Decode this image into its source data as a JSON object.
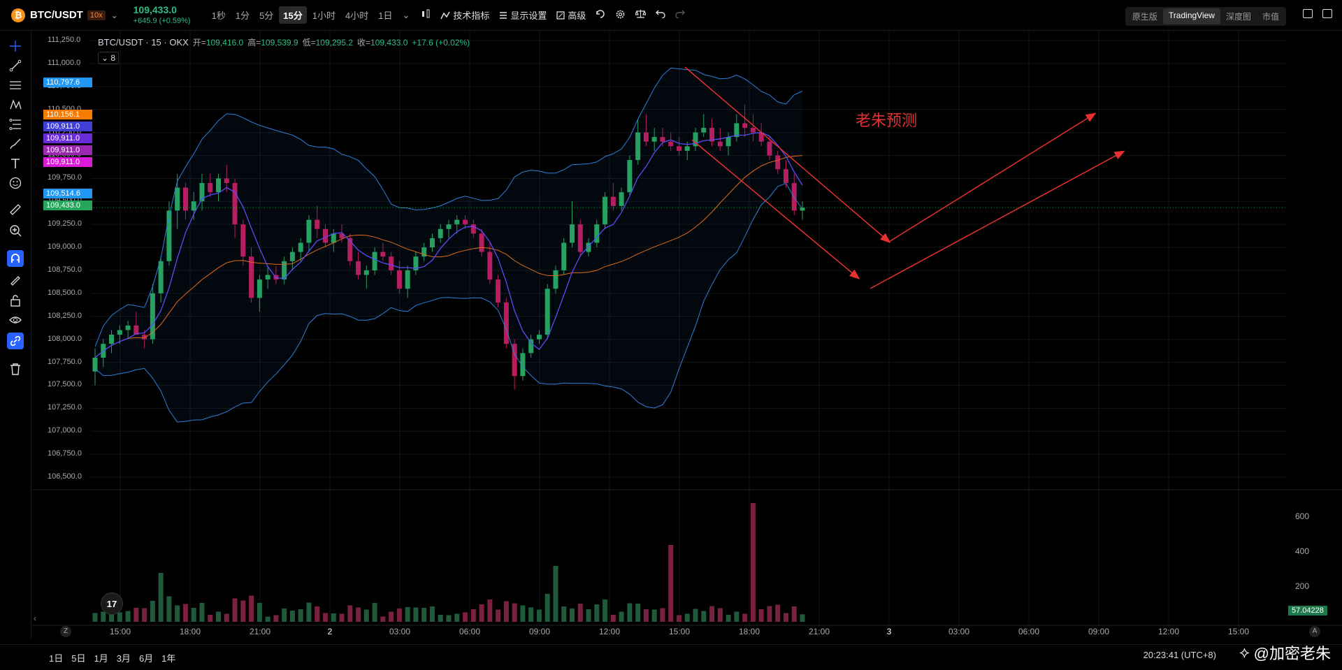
{
  "header": {
    "coin_glyph": "₿",
    "symbol": "BTC/USDT",
    "leverage": "10x",
    "price": "109,433.0",
    "change": "+645.9 (+0.59%)",
    "timeframes": [
      "1秒",
      "1分",
      "5分",
      "15分",
      "1小时",
      "4小时",
      "1日"
    ],
    "active_timeframe": "15分",
    "tools": {
      "indicators": "技术指标",
      "display": "显示设置",
      "advanced": "高级"
    },
    "view_tabs": [
      "原生版",
      "TradingView",
      "深度图",
      "市值"
    ],
    "active_view": "TradingView"
  },
  "legend": {
    "title": "BTC/USDT · 15 · OKX",
    "open_label": "开=",
    "open": "109,416.0",
    "high_label": "高=",
    "high": "109,539.9",
    "low_label": "低=",
    "low": "109,295.2",
    "close_label": "收=",
    "close": "109,433.0",
    "chg": "+17.6 (+0.02%)",
    "collapse_count": "8"
  },
  "y_axis": {
    "labels": [
      "111,250.0",
      "111,000.0",
      "110,750.0",
      "110,500.0",
      "110,250.0",
      "110,000.0",
      "109,750.0",
      "109,500.0",
      "109,250.0",
      "109,000.0",
      "108,750.0",
      "108,500.0",
      "108,250.0",
      "108,000.0",
      "107,750.0",
      "107,500.0",
      "107,250.0",
      "107,000.0",
      "106,750.0",
      "106,500.0"
    ],
    "tags": [
      {
        "text": "110,797.6",
        "color": "#2196f3",
        "value": 110797.6
      },
      {
        "text": "110,156.1",
        "color": "#f57c00",
        "value": 110156.1
      },
      {
        "text": "109,911.0",
        "color": "#3f3fd8",
        "value": 109911
      },
      {
        "text": "109,911.0",
        "color": "#6a2bd9",
        "value": 109911
      },
      {
        "text": "109,911.0",
        "color": "#9c27b0",
        "value": 109911
      },
      {
        "text": "109,911.0",
        "color": "#d81bd8",
        "value": 109911
      },
      {
        "text": "109,514.6",
        "color": "#2196f3",
        "value": 109514.6
      },
      {
        "text": "109,433.0",
        "color": "#26a65b",
        "value": 109433
      }
    ]
  },
  "volume_axis": {
    "labels": [
      "600",
      "400",
      "200"
    ],
    "current": "57.04228"
  },
  "x_axis": {
    "labels": [
      "15:00",
      "18:00",
      "21:00",
      "2",
      "03:00",
      "06:00",
      "09:00",
      "12:00",
      "15:00",
      "18:00",
      "21:00",
      "3",
      "03:00",
      "06:00",
      "09:00",
      "12:00",
      "15:00"
    ]
  },
  "annotation": {
    "text": "老朱预测"
  },
  "bottom": {
    "ranges": [
      "1日",
      "5日",
      "1月",
      "3月",
      "6月",
      "1年"
    ],
    "clock": "20:23:41 (UTC+8)",
    "watermark": "@加密老朱",
    "axis_z": "Z",
    "axis_a": "A",
    "tv_logo": "17"
  },
  "colors": {
    "up": "#26a65b",
    "down": "#c2185b",
    "bb": "#2f7fd8",
    "ma_fast": "#5b4cf5",
    "ma_slow": "#e06c1a",
    "arrow": "#e83030"
  },
  "chart_data": {
    "type": "candlestick",
    "interval": "15m",
    "ylim": [
      106500,
      111300
    ],
    "ohlc_note": "approximate 15-minute candles read from chart",
    "candles": [
      [
        107650,
        107900,
        107500,
        107800
      ],
      [
        107800,
        108000,
        107700,
        107950
      ],
      [
        107950,
        108100,
        107850,
        108050
      ],
      [
        108050,
        108150,
        107950,
        108100
      ],
      [
        108100,
        108200,
        108000,
        108150
      ],
      [
        108150,
        108300,
        108050,
        108050
      ],
      [
        108050,
        108100,
        107900,
        108000
      ],
      [
        108000,
        108600,
        107950,
        108500
      ],
      [
        108500,
        108900,
        108400,
        108850
      ],
      [
        108850,
        109500,
        108800,
        109400
      ],
      [
        109400,
        109800,
        109200,
        109650
      ],
      [
        109650,
        109700,
        109300,
        109400
      ],
      [
        109400,
        109600,
        109300,
        109500
      ],
      [
        109500,
        109800,
        109400,
        109700
      ],
      [
        109700,
        109800,
        109550,
        109600
      ],
      [
        109600,
        109800,
        109500,
        109750
      ],
      [
        109750,
        109900,
        109600,
        109700
      ],
      [
        109700,
        109750,
        109100,
        109250
      ],
      [
        109250,
        109300,
        108800,
        108900
      ],
      [
        108900,
        109000,
        108400,
        108450
      ],
      [
        108450,
        108700,
        108300,
        108650
      ],
      [
        108650,
        108800,
        108550,
        108700
      ],
      [
        108700,
        108800,
        108600,
        108650
      ],
      [
        108650,
        108900,
        108600,
        108850
      ],
      [
        108850,
        109000,
        108750,
        108950
      ],
      [
        108950,
        109100,
        108850,
        109050
      ],
      [
        109050,
        109350,
        108950,
        109300
      ],
      [
        109300,
        109450,
        109100,
        109200
      ],
      [
        109200,
        109250,
        109000,
        109050
      ],
      [
        109050,
        109200,
        108950,
        109150
      ],
      [
        109150,
        109250,
        109050,
        109100
      ],
      [
        109100,
        109150,
        108800,
        108850
      ],
      [
        108850,
        108950,
        108650,
        108700
      ],
      [
        108700,
        108800,
        108550,
        108750
      ],
      [
        108750,
        109000,
        108700,
        108950
      ],
      [
        108950,
        109050,
        108850,
        108900
      ],
      [
        108900,
        108950,
        108700,
        108750
      ],
      [
        108750,
        108850,
        108500,
        108550
      ],
      [
        108550,
        108800,
        108450,
        108750
      ],
      [
        108750,
        108950,
        108700,
        108900
      ],
      [
        108900,
        109050,
        108850,
        109000
      ],
      [
        109000,
        109150,
        108950,
        109100
      ],
      [
        109100,
        109250,
        109050,
        109200
      ],
      [
        109200,
        109300,
        109100,
        109250
      ],
      [
        109250,
        109350,
        109150,
        109300
      ],
      [
        109300,
        109350,
        109200,
        109250
      ],
      [
        109250,
        109300,
        109100,
        109150
      ],
      [
        109150,
        109200,
        108900,
        108950
      ],
      [
        108950,
        109050,
        108600,
        108650
      ],
      [
        108650,
        108700,
        108350,
        108400
      ],
      [
        108400,
        108450,
        107900,
        107950
      ],
      [
        107950,
        108000,
        107450,
        107600
      ],
      [
        107600,
        107900,
        107550,
        107850
      ],
      [
        107850,
        108050,
        107800,
        108000
      ],
      [
        108000,
        108100,
        107950,
        108050
      ],
      [
        108050,
        108600,
        108000,
        108550
      ],
      [
        108550,
        108800,
        108500,
        108750
      ],
      [
        108750,
        109100,
        108700,
        109050
      ],
      [
        109050,
        109500,
        109000,
        109250
      ],
      [
        109250,
        109300,
        108900,
        108950
      ],
      [
        108950,
        109100,
        108900,
        109050
      ],
      [
        109050,
        109300,
        109000,
        109250
      ],
      [
        109250,
        109600,
        109200,
        109550
      ],
      [
        109550,
        109700,
        109400,
        109450
      ],
      [
        109450,
        109650,
        109400,
        109600
      ],
      [
        109600,
        110000,
        109550,
        109950
      ],
      [
        109950,
        110400,
        109900,
        110250
      ],
      [
        110250,
        110450,
        110100,
        110150
      ],
      [
        110150,
        110300,
        110050,
        110200
      ],
      [
        110200,
        110300,
        110100,
        110150
      ],
      [
        110150,
        110250,
        110050,
        110100
      ],
      [
        110100,
        110200,
        110000,
        110050
      ],
      [
        110050,
        110150,
        109950,
        110100
      ],
      [
        110100,
        110300,
        110050,
        110250
      ],
      [
        110250,
        110450,
        110200,
        110300
      ],
      [
        110300,
        110400,
        110100,
        110150
      ],
      [
        110150,
        110300,
        110050,
        110100
      ],
      [
        110100,
        110250,
        110000,
        110200
      ],
      [
        110200,
        110450,
        110150,
        110350
      ],
      [
        110350,
        110550,
        110200,
        110300
      ],
      [
        110300,
        110450,
        110150,
        110250
      ],
      [
        110250,
        110350,
        110100,
        110150
      ],
      [
        110150,
        110200,
        109950,
        110000
      ],
      [
        110000,
        110050,
        109800,
        109850
      ],
      [
        109850,
        109950,
        109650,
        109700
      ],
      [
        109700,
        109800,
        109350,
        109400
      ],
      [
        109400,
        109500,
        109300,
        109433
      ]
    ]
  }
}
